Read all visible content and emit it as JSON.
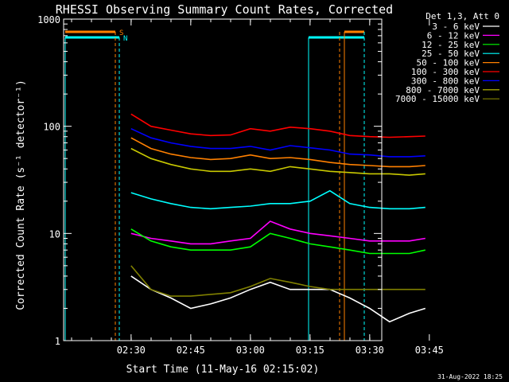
{
  "chart_data": {
    "type": "line",
    "title": "RHESSI Observing Summary Count Rates, Corrected",
    "xlabel": "Start Time (11-May-16 02:15:02)",
    "ylabel": "Corrected Count Rate (s⁻¹ detector⁻¹)",
    "y_scale": "log",
    "ylim": [
      1,
      1000
    ],
    "xlim_minutes_after_02_15_02": [
      -2,
      78
    ],
    "x_tick_labels": [
      "02:30",
      "02:45",
      "03:00",
      "03:15",
      "03:30",
      "03:45"
    ],
    "y_tick_labels": [
      "1",
      "10",
      "100",
      "1000"
    ],
    "legend_title": "Det 1,3, Att 0",
    "legend_position": "top-right, outside plot",
    "footer_date": "31-Aug-2022 18:25",
    "flags": {
      "s_label": "S",
      "n_label": "N"
    },
    "x": [
      "02:30",
      "02:35",
      "02:40",
      "02:45",
      "02:50",
      "02:55",
      "03:00",
      "03:05",
      "03:10",
      "03:15",
      "03:20",
      "03:25",
      "03:30",
      "03:35",
      "03:40",
      "03:44"
    ],
    "series": [
      {
        "name": "3 - 6 keV",
        "color": "#ffffff",
        "values": [
          4.0,
          3.0,
          2.5,
          2.0,
          2.2,
          2.5,
          3.0,
          3.5,
          3.0,
          3.0,
          3.0,
          2.5,
          2.0,
          1.5,
          1.8,
          2.0
        ]
      },
      {
        "name": "6 - 12 keV",
        "color": "#ff00ff",
        "values": [
          10,
          9,
          8.5,
          8,
          8,
          8.5,
          9,
          13,
          11,
          10,
          9.5,
          9,
          8.5,
          8.5,
          8.5,
          9
        ]
      },
      {
        "name": "12 - 25 keV",
        "color": "#00ff00",
        "values": [
          11,
          8.5,
          7.5,
          7,
          7,
          7,
          7.5,
          10,
          9,
          8,
          7.5,
          7,
          6.5,
          6.5,
          6.5,
          7
        ]
      },
      {
        "name": "25 - 50 keV",
        "color": "#00ffff",
        "values": [
          24,
          21,
          19,
          17.5,
          17,
          17.5,
          18,
          19,
          19,
          20,
          25,
          19,
          17.5,
          17,
          17,
          17.5
        ]
      },
      {
        "name": "50 - 100 keV",
        "color": "#ff8000",
        "values": [
          78,
          62,
          55,
          51,
          49,
          50,
          54,
          50,
          51,
          49,
          46,
          44,
          43,
          42,
          42,
          43
        ]
      },
      {
        "name": "100 - 300 keV",
        "color": "#ff0000",
        "values": [
          130,
          100,
          92,
          85,
          82,
          83,
          95,
          90,
          98,
          95,
          90,
          82,
          80,
          79,
          80,
          81
        ]
      },
      {
        "name": "300 - 800 keV",
        "color": "#0000ff",
        "values": [
          95,
          78,
          70,
          65,
          62,
          62,
          65,
          60,
          66,
          63,
          60,
          55,
          54,
          52,
          52,
          53
        ]
      },
      {
        "name": "800 - 7000 keV",
        "color": "#c8c800",
        "values": [
          62,
          50,
          44,
          40,
          38,
          38,
          40,
          38,
          42,
          40,
          38,
          37,
          36,
          36,
          35,
          36
        ]
      },
      {
        "name": "7000 - 15000 keV",
        "color": "#808000",
        "values": [
          5.0,
          3.0,
          2.6,
          2.6,
          2.7,
          2.8,
          3.2,
          3.8,
          3.5,
          3.2,
          3.0,
          3.0,
          3.0,
          3.0,
          3.0,
          3.0
        ]
      }
    ]
  }
}
